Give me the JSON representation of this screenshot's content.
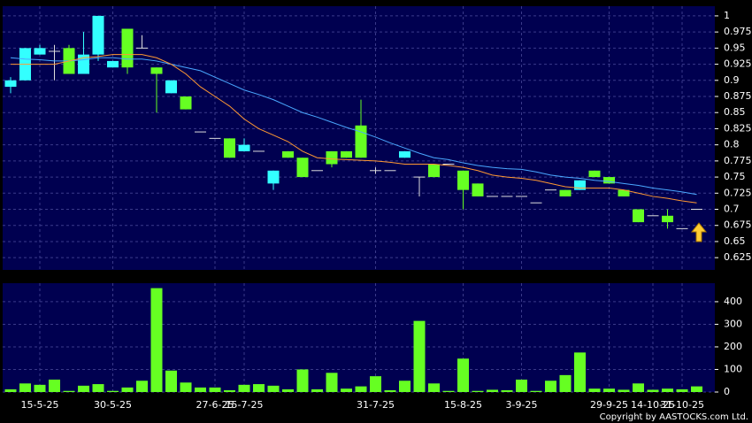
{
  "chart_data": [
    {
      "type": "candlestick",
      "categories": [
        null,
        null,
        "15-5-25",
        null,
        null,
        null,
        null,
        "30-5-25",
        null,
        null,
        null,
        null,
        null,
        null,
        "27-6-25",
        null,
        "15-7-25",
        null,
        null,
        null,
        null,
        null,
        null,
        null,
        null,
        "31-7-25",
        null,
        null,
        null,
        null,
        null,
        "15-8-25",
        null,
        null,
        null,
        "3-9-25",
        null,
        null,
        null,
        null,
        null,
        "29-9-25",
        null,
        null,
        "14-10-25",
        null,
        "31-10-25",
        null
      ],
      "open": [
        0.89,
        0.9,
        0.94,
        0.945,
        0.95,
        0.91,
        0.94,
        0.92,
        0.98,
        0.95,
        0.92,
        0.88,
        0.875,
        0.82,
        0.81,
        0.81,
        0.79,
        0.79,
        0.74,
        0.79,
        0.78,
        0.76,
        0.79,
        0.79,
        0.83,
        0.76,
        0.76,
        0.78,
        0.75,
        0.77,
        0.77,
        0.76,
        0.74,
        0.72,
        0.72,
        0.72,
        0.71,
        0.73,
        0.73,
        0.73,
        0.76,
        0.75,
        0.73,
        0.7,
        0.69,
        0.69,
        0.67,
        0.7
      ],
      "high": [
        0.905,
        0.95,
        0.955,
        0.955,
        0.955,
        0.975,
        1.0,
        0.93,
        0.98,
        0.97,
        0.92,
        0.9,
        0.875,
        0.82,
        0.81,
        0.81,
        0.81,
        0.79,
        0.76,
        0.79,
        0.78,
        0.76,
        0.79,
        0.79,
        0.87,
        0.765,
        0.76,
        0.79,
        0.75,
        0.77,
        0.77,
        0.76,
        0.74,
        0.72,
        0.72,
        0.72,
        0.71,
        0.73,
        0.73,
        0.745,
        0.76,
        0.75,
        0.73,
        0.7,
        0.69,
        0.7,
        0.67,
        0.7
      ],
      "low": [
        0.88,
        0.9,
        0.94,
        0.9,
        0.91,
        0.91,
        0.93,
        0.92,
        0.91,
        0.95,
        0.85,
        0.88,
        0.855,
        0.82,
        0.81,
        0.78,
        0.79,
        0.79,
        0.73,
        0.78,
        0.75,
        0.76,
        0.765,
        0.78,
        0.78,
        0.755,
        0.76,
        0.78,
        0.72,
        0.75,
        0.77,
        0.7,
        0.72,
        0.72,
        0.72,
        0.72,
        0.71,
        0.73,
        0.72,
        0.73,
        0.75,
        0.74,
        0.72,
        0.68,
        0.69,
        0.67,
        0.67,
        0.7
      ],
      "close": [
        0.9,
        0.95,
        0.95,
        0.945,
        0.91,
        0.94,
        1.0,
        0.93,
        0.92,
        0.95,
        0.91,
        0.9,
        0.855,
        0.82,
        0.81,
        0.78,
        0.8,
        0.79,
        0.76,
        0.78,
        0.75,
        0.76,
        0.77,
        0.78,
        0.78,
        0.76,
        0.76,
        0.79,
        0.75,
        0.75,
        0.77,
        0.73,
        0.72,
        0.72,
        0.72,
        0.72,
        0.71,
        0.73,
        0.72,
        0.745,
        0.75,
        0.74,
        0.72,
        0.68,
        0.69,
        0.68,
        0.67,
        0.7
      ],
      "up_color": "#33ffff",
      "down_color": "#66ff22",
      "flat_color": "#dddddd",
      "lines": [
        {
          "color": "#4aa8ff",
          "values": [
            0.935,
            0.933,
            0.932,
            0.93,
            0.93,
            0.932,
            0.935,
            0.935,
            0.933,
            0.933,
            0.93,
            0.925,
            0.92,
            0.915,
            0.905,
            0.895,
            0.885,
            0.878,
            0.87,
            0.86,
            0.85,
            0.843,
            0.835,
            0.827,
            0.82,
            0.812,
            0.803,
            0.795,
            0.787,
            0.78,
            0.777,
            0.772,
            0.768,
            0.765,
            0.763,
            0.762,
            0.758,
            0.753,
            0.75,
            0.748,
            0.745,
            0.743,
            0.74,
            0.737,
            0.733,
            0.73,
            0.727,
            0.723
          ]
        },
        {
          "color": "#ff9933",
          "values": [
            0.925,
            0.925,
            0.925,
            0.925,
            0.93,
            0.935,
            0.937,
            0.94,
            0.94,
            0.94,
            0.935,
            0.925,
            0.91,
            0.89,
            0.875,
            0.86,
            0.84,
            0.825,
            0.815,
            0.805,
            0.79,
            0.78,
            0.778,
            0.777,
            0.776,
            0.775,
            0.773,
            0.77,
            0.77,
            0.77,
            0.768,
            0.765,
            0.76,
            0.753,
            0.75,
            0.748,
            0.745,
            0.74,
            0.735,
            0.733,
            0.733,
            0.733,
            0.73,
            0.725,
            0.72,
            0.717,
            0.713,
            0.71
          ]
        }
      ],
      "ylim": [
        0.606,
        1.015
      ],
      "yticks": [
        0.625,
        0.65,
        0.675,
        0.7,
        0.725,
        0.75,
        0.775,
        0.8,
        0.825,
        0.85,
        0.875,
        0.9,
        0.925,
        0.95,
        0.975,
        1
      ],
      "grid": true
    },
    {
      "type": "bar",
      "color": "#66ff22",
      "values": [
        12,
        38,
        32,
        55,
        5,
        28,
        35,
        5,
        20,
        50,
        460,
        95,
        42,
        20,
        20,
        8,
        32,
        35,
        28,
        12,
        100,
        12,
        85,
        15,
        25,
        70,
        8,
        50,
        315,
        38,
        5,
        148,
        5,
        10,
        8,
        55,
        5,
        50,
        75,
        175,
        15,
        15,
        10,
        38,
        10,
        15,
        12,
        25
      ],
      "ylim": [
        0,
        482
      ],
      "yticks": [
        0,
        100,
        200,
        300,
        400
      ],
      "grid": true
    }
  ],
  "copyright": "Copyright by AASTOCKS.com Ltd."
}
